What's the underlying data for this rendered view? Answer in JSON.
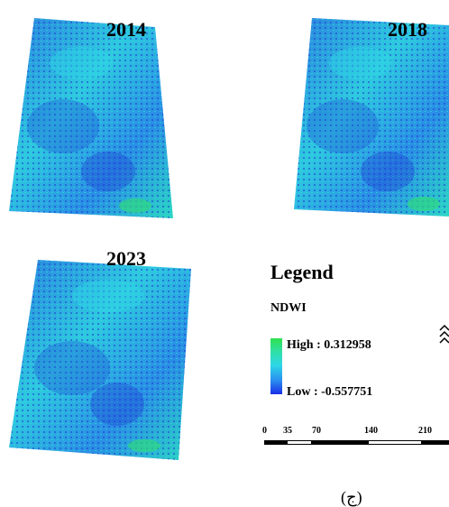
{
  "panels": [
    {
      "year": "2014"
    },
    {
      "year": "2018"
    },
    {
      "year": "2023"
    }
  ],
  "legend": {
    "title": "Legend",
    "layer": "NDWI",
    "high": "High : 0.312958",
    "low": "Low : -0.557751",
    "colors": [
      "#2fe04e",
      "#2ed8e6",
      "#1a2ee8"
    ]
  },
  "scalebar": {
    "ticks": [
      "0",
      "35",
      "70",
      "140",
      "210"
    ]
  },
  "caption": "(ج)"
}
